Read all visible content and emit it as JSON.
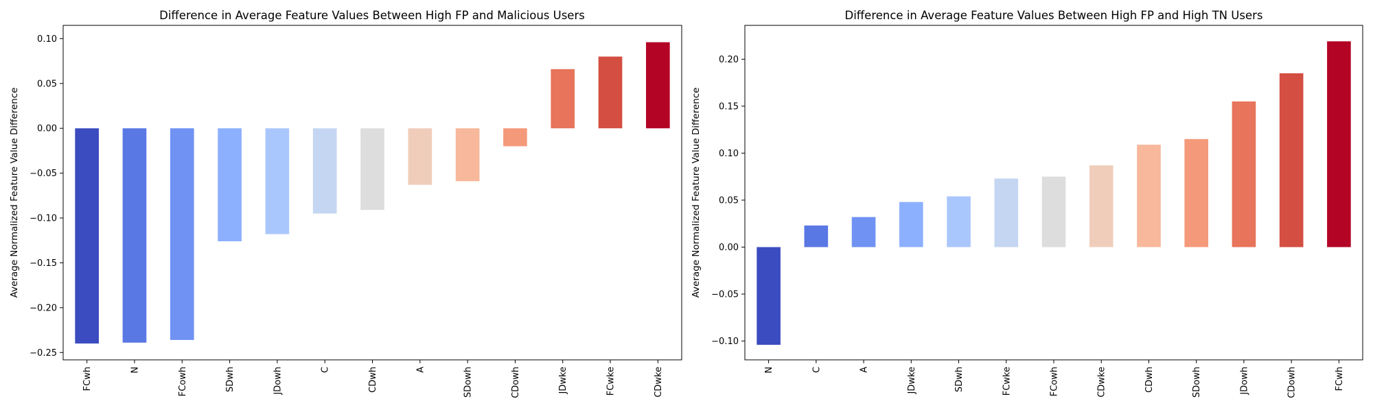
{
  "chart_data": [
    {
      "type": "bar",
      "title": "Difference in Average Feature Values Between High FP and Malicious Users",
      "xlabel": "",
      "ylabel": "Average Normalized Feature Value Difference",
      "categories": [
        "FCwh",
        "N",
        "FCowh",
        "SDwh",
        "JDowh",
        "C",
        "CDwh",
        "A",
        "SDowh",
        "CDowh",
        "JDwke",
        "FCwke",
        "CDwke"
      ],
      "values": [
        -0.24,
        -0.239,
        -0.236,
        -0.126,
        -0.118,
        -0.095,
        -0.091,
        -0.063,
        -0.059,
        -0.02,
        0.066,
        0.08,
        0.096
      ],
      "ylim": [
        -0.2582,
        0.1148
      ],
      "yticks": [
        -0.25,
        -0.2,
        -0.15,
        -0.1,
        -0.05,
        0.0,
        0.05,
        0.1
      ],
      "colors": [
        "#3b4cc0",
        "#5a78e4",
        "#6f92f3",
        "#8db0fe",
        "#aac7fd",
        "#c5d6f2",
        "#dddddd",
        "#f0cdbb",
        "#f7b89c",
        "#f49a7b",
        "#e7745b",
        "#d44e41",
        "#b40426"
      ],
      "grid": false
    },
    {
      "type": "bar",
      "title": "Difference in Average Feature Values Between High FP and High TN Users",
      "xlabel": "",
      "ylabel": "Average Normalized Feature Value Difference",
      "categories": [
        "N",
        "C",
        "A",
        "JDwke",
        "SDwh",
        "FCwke",
        "FCowh",
        "CDwke",
        "CDwh",
        "SDowh",
        "JDowh",
        "CDowh",
        "FCwh"
      ],
      "values": [
        -0.104,
        0.023,
        0.032,
        0.048,
        0.054,
        0.073,
        0.075,
        0.087,
        0.109,
        0.115,
        0.155,
        0.185,
        0.219
      ],
      "ylim": [
        -0.12,
        0.236
      ],
      "yticks": [
        -0.1,
        -0.05,
        0.0,
        0.05,
        0.1,
        0.15,
        0.2
      ],
      "colors": [
        "#3b4cc0",
        "#5a78e4",
        "#6f92f3",
        "#8db0fe",
        "#aac7fd",
        "#c5d6f2",
        "#dddddd",
        "#f0cdbb",
        "#f7b89c",
        "#f49a7b",
        "#e7745b",
        "#d44e41",
        "#b40426"
      ],
      "grid": false
    }
  ]
}
